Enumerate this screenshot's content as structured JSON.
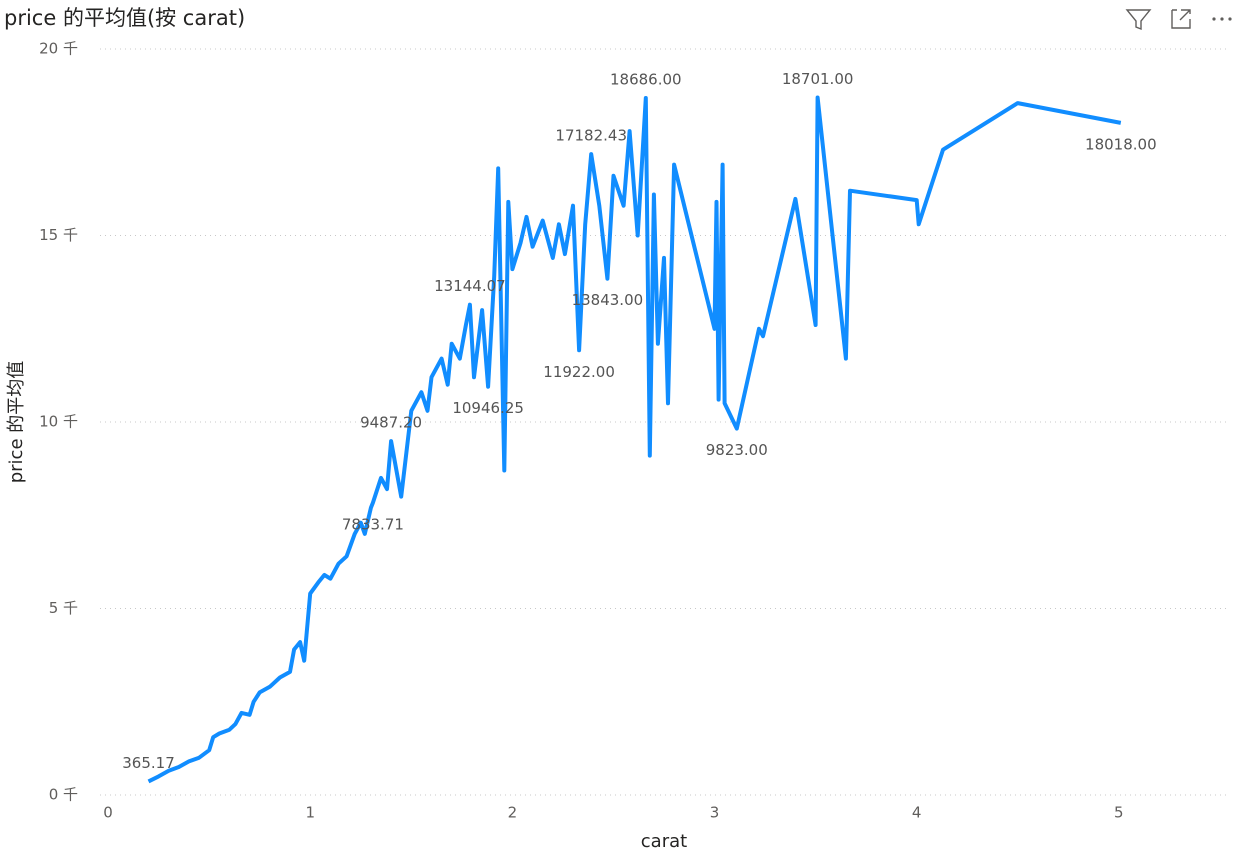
{
  "chart_data": {
    "type": "line",
    "title": "price 的平均值(按 carat)",
    "x_label": "carat",
    "y_label": "price 的平均值",
    "color": "#118dff",
    "x": [
      0.2,
      0.25,
      0.3,
      0.35,
      0.4,
      0.45,
      0.5,
      0.52,
      0.55,
      0.6,
      0.63,
      0.66,
      0.7,
      0.72,
      0.75,
      0.8,
      0.85,
      0.9,
      0.92,
      0.95,
      0.97,
      1.0,
      1.04,
      1.07,
      1.1,
      1.14,
      1.18,
      1.22,
      1.25,
      1.27,
      1.3,
      1.31,
      1.35,
      1.38,
      1.4,
      1.45,
      1.5,
      1.55,
      1.58,
      1.6,
      1.65,
      1.68,
      1.7,
      1.74,
      1.77,
      1.79,
      1.81,
      1.85,
      1.88,
      1.91,
      1.93,
      1.96,
      1.98,
      2.0,
      2.04,
      2.07,
      2.1,
      2.15,
      2.2,
      2.23,
      2.26,
      2.3,
      2.33,
      2.36,
      2.39,
      2.43,
      2.47,
      2.5,
      2.55,
      2.58,
      2.62,
      2.66,
      2.68,
      2.7,
      2.72,
      2.75,
      2.77,
      2.8,
      3.0,
      3.01,
      3.02,
      3.04,
      3.05,
      3.11,
      3.22,
      3.24,
      3.4,
      3.5,
      3.51,
      3.65,
      3.67,
      4.0,
      4.01,
      4.13,
      4.5,
      5.01
    ],
    "values": [
      365.17,
      500,
      650,
      750,
      900,
      1000,
      1200,
      1550,
      1650,
      1750,
      1900,
      2200,
      2150,
      2500,
      2750,
      2900,
      3150,
      3300,
      3900,
      4100,
      3600,
      5400,
      5700,
      5900,
      5800,
      6200,
      6400,
      7000,
      7300,
      7000,
      7700,
      7833.71,
      8500,
      8200,
      9487.2,
      8000,
      10300,
      10800,
      10300,
      11200,
      11700,
      11000,
      12100,
      11700,
      12600,
      13144.07,
      11200,
      13000,
      10946.25,
      13900,
      16800,
      8700,
      15900,
      14100,
      14800,
      15500,
      14700,
      15400,
      14400,
      15300,
      14500,
      15800,
      11922,
      15300,
      17182.43,
      15800,
      13843,
      16600,
      15800,
      17800,
      15000,
      18686,
      9100,
      16100,
      12100,
      14400,
      10500,
      16900,
      12500,
      15900,
      10600,
      16900,
      10500,
      9823,
      12500,
      12300,
      15980,
      12600,
      18701,
      11700,
      16200,
      15950,
      15300,
      17300,
      18550,
      18018
    ],
    "value_labels": [
      "365.17",
      null,
      null,
      null,
      null,
      null,
      null,
      null,
      null,
      null,
      null,
      null,
      null,
      null,
      null,
      null,
      null,
      null,
      null,
      null,
      null,
      null,
      null,
      null,
      null,
      null,
      null,
      null,
      null,
      null,
      null,
      "7833.71",
      null,
      null,
      "9487.20",
      null,
      null,
      null,
      null,
      null,
      null,
      null,
      null,
      null,
      null,
      "13144.07",
      null,
      null,
      "10946.25",
      null,
      null,
      null,
      null,
      null,
      null,
      null,
      null,
      null,
      null,
      null,
      null,
      null,
      "11922.00",
      null,
      "17182.43",
      null,
      "13843.00",
      null,
      null,
      null,
      null,
      "18686.00",
      null,
      null,
      null,
      null,
      null,
      null,
      null,
      null,
      null,
      null,
      null,
      "9823.00",
      null,
      null,
      null,
      null,
      "18701.00",
      null,
      null,
      null,
      null,
      null,
      null,
      "18018.00"
    ],
    "xlim": [
      -0.04,
      5.55
    ],
    "ylim": [
      0,
      20000
    ],
    "xticks": [
      0,
      1,
      2,
      3,
      4,
      5
    ],
    "yticks": [
      {
        "value": 0,
        "label": "0 千"
      },
      {
        "value": 5000,
        "label": "5 千"
      },
      {
        "value": 10000,
        "label": "10 千"
      },
      {
        "value": 15000,
        "label": "15 千"
      },
      {
        "value": 20000,
        "label": "20 千"
      }
    ],
    "grid": true
  }
}
